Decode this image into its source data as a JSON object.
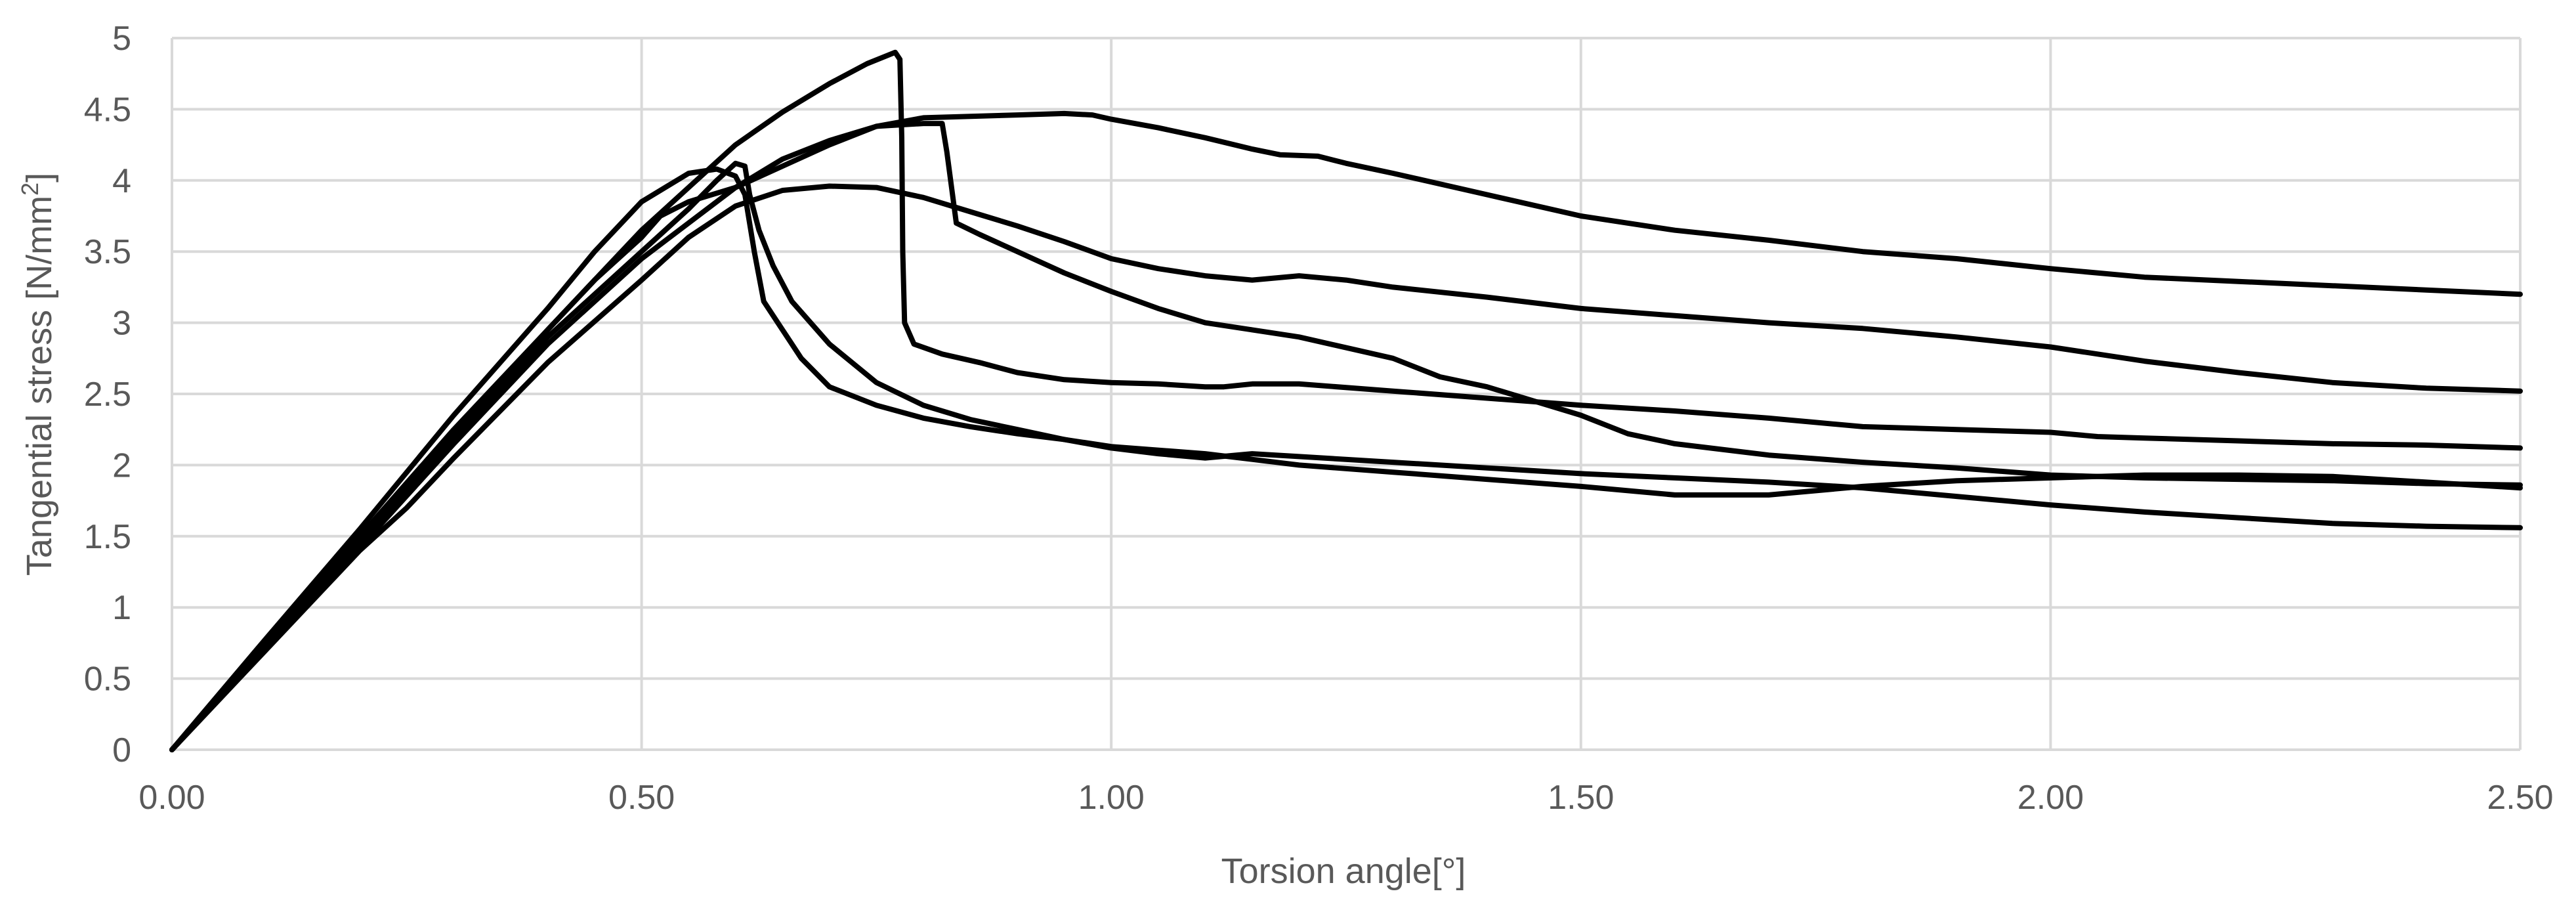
{
  "chart_data": {
    "type": "line",
    "title": "",
    "xlabel": "Torsion angle[°]",
    "ylabel_main": "Tangential stress [N/mm",
    "ylabel_sup": "2",
    "ylabel_close": "]",
    "xlim": [
      0,
      2.5
    ],
    "ylim": [
      0,
      5
    ],
    "x_ticks": [
      0,
      0.5,
      1.0,
      1.5,
      2.0,
      2.5
    ],
    "x_tick_labels": [
      "0.00",
      "0.50",
      "1.00",
      "1.50",
      "2.00",
      "2.50"
    ],
    "y_ticks": [
      0,
      0.5,
      1,
      1.5,
      2,
      2.5,
      3,
      3.5,
      4,
      4.5,
      5
    ],
    "y_tick_labels": [
      "0",
      "0.5",
      "1",
      "1.5",
      "2",
      "2.5",
      "3",
      "3.5",
      "4",
      "4.5",
      "5"
    ],
    "grid": true,
    "line_color": "#000000",
    "grid_color": "#d9d9d9",
    "series": [
      {
        "points": [
          [
            0,
            0
          ],
          [
            0.1,
            0.72
          ],
          [
            0.2,
            1.45
          ],
          [
            0.3,
            2.2
          ],
          [
            0.4,
            2.95
          ],
          [
            0.5,
            3.65
          ],
          [
            0.55,
            3.95
          ],
          [
            0.6,
            4.25
          ],
          [
            0.65,
            4.48
          ],
          [
            0.7,
            4.68
          ],
          [
            0.74,
            4.82
          ],
          [
            0.77,
            4.9
          ],
          [
            0.775,
            4.85
          ],
          [
            0.777,
            4.3
          ],
          [
            0.778,
            3.5
          ],
          [
            0.78,
            3.0
          ],
          [
            0.79,
            2.85
          ],
          [
            0.82,
            2.78
          ],
          [
            0.86,
            2.72
          ],
          [
            0.9,
            2.65
          ],
          [
            0.95,
            2.6
          ],
          [
            1.0,
            2.58
          ],
          [
            1.05,
            2.57
          ],
          [
            1.1,
            2.55
          ],
          [
            1.12,
            2.55
          ],
          [
            1.15,
            2.57
          ],
          [
            1.2,
            2.57
          ],
          [
            1.3,
            2.52
          ],
          [
            1.4,
            2.47
          ],
          [
            1.5,
            2.42
          ],
          [
            1.6,
            2.38
          ],
          [
            1.7,
            2.33
          ],
          [
            1.75,
            2.3
          ],
          [
            1.8,
            2.27
          ],
          [
            1.9,
            2.25
          ],
          [
            2.0,
            2.23
          ],
          [
            2.05,
            2.2
          ],
          [
            2.1,
            2.19
          ],
          [
            2.2,
            2.17
          ],
          [
            2.3,
            2.15
          ],
          [
            2.4,
            2.14
          ],
          [
            2.5,
            2.12
          ]
        ]
      },
      {
        "points": [
          [
            0,
            0
          ],
          [
            0.1,
            0.72
          ],
          [
            0.2,
            1.42
          ],
          [
            0.3,
            2.15
          ],
          [
            0.4,
            2.85
          ],
          [
            0.5,
            3.45
          ],
          [
            0.6,
            3.95
          ],
          [
            0.7,
            4.25
          ],
          [
            0.75,
            4.38
          ],
          [
            0.8,
            4.44
          ],
          [
            0.85,
            4.45
          ],
          [
            0.9,
            4.46
          ],
          [
            0.95,
            4.47
          ],
          [
            0.98,
            4.46
          ],
          [
            1.0,
            4.43
          ],
          [
            1.05,
            4.37
          ],
          [
            1.1,
            4.3
          ],
          [
            1.15,
            4.22
          ],
          [
            1.18,
            4.18
          ],
          [
            1.22,
            4.17
          ],
          [
            1.25,
            4.12
          ],
          [
            1.3,
            4.05
          ],
          [
            1.4,
            3.9
          ],
          [
            1.5,
            3.75
          ],
          [
            1.6,
            3.65
          ],
          [
            1.7,
            3.58
          ],
          [
            1.8,
            3.5
          ],
          [
            1.9,
            3.45
          ],
          [
            2.0,
            3.38
          ],
          [
            2.1,
            3.32
          ],
          [
            2.2,
            3.29
          ],
          [
            2.3,
            3.26
          ],
          [
            2.4,
            3.23
          ],
          [
            2.5,
            3.2
          ]
        ]
      },
      {
        "points": [
          [
            0,
            0
          ],
          [
            0.1,
            0.75
          ],
          [
            0.2,
            1.5
          ],
          [
            0.3,
            2.25
          ],
          [
            0.4,
            2.95
          ],
          [
            0.45,
            3.3
          ],
          [
            0.5,
            3.6
          ],
          [
            0.52,
            3.75
          ],
          [
            0.55,
            3.85
          ],
          [
            0.6,
            3.95
          ],
          [
            0.65,
            4.15
          ],
          [
            0.7,
            4.28
          ],
          [
            0.75,
            4.38
          ],
          [
            0.8,
            4.4
          ],
          [
            0.82,
            4.4
          ],
          [
            0.825,
            4.2
          ],
          [
            0.83,
            3.95
          ],
          [
            0.835,
            3.7
          ],
          [
            0.86,
            3.62
          ],
          [
            0.9,
            3.5
          ],
          [
            0.95,
            3.35
          ],
          [
            1.0,
            3.22
          ],
          [
            1.05,
            3.1
          ],
          [
            1.1,
            3.0
          ],
          [
            1.15,
            2.95
          ],
          [
            1.2,
            2.9
          ],
          [
            1.3,
            2.75
          ],
          [
            1.35,
            2.62
          ],
          [
            1.4,
            2.55
          ],
          [
            1.45,
            2.45
          ],
          [
            1.5,
            2.35
          ],
          [
            1.55,
            2.22
          ],
          [
            1.6,
            2.15
          ],
          [
            1.7,
            2.07
          ],
          [
            1.8,
            2.02
          ],
          [
            1.9,
            1.98
          ],
          [
            2.0,
            1.93
          ],
          [
            2.1,
            1.91
          ],
          [
            2.2,
            1.9
          ],
          [
            2.3,
            1.89
          ],
          [
            2.4,
            1.87
          ],
          [
            2.5,
            1.86
          ]
        ]
      },
      {
        "points": [
          [
            0,
            0
          ],
          [
            0.1,
            0.7
          ],
          [
            0.2,
            1.4
          ],
          [
            0.25,
            1.7
          ],
          [
            0.3,
            2.05
          ],
          [
            0.4,
            2.72
          ],
          [
            0.5,
            3.3
          ],
          [
            0.55,
            3.6
          ],
          [
            0.6,
            3.82
          ],
          [
            0.65,
            3.93
          ],
          [
            0.7,
            3.96
          ],
          [
            0.75,
            3.95
          ],
          [
            0.8,
            3.88
          ],
          [
            0.85,
            3.78
          ],
          [
            0.9,
            3.68
          ],
          [
            0.95,
            3.57
          ],
          [
            1.0,
            3.45
          ],
          [
            1.05,
            3.38
          ],
          [
            1.1,
            3.33
          ],
          [
            1.15,
            3.3
          ],
          [
            1.2,
            3.33
          ],
          [
            1.25,
            3.3
          ],
          [
            1.3,
            3.25
          ],
          [
            1.4,
            3.18
          ],
          [
            1.5,
            3.1
          ],
          [
            1.6,
            3.05
          ],
          [
            1.7,
            3.0
          ],
          [
            1.8,
            2.96
          ],
          [
            1.9,
            2.9
          ],
          [
            2.0,
            2.83
          ],
          [
            2.1,
            2.73
          ],
          [
            2.2,
            2.65
          ],
          [
            2.3,
            2.58
          ],
          [
            2.4,
            2.54
          ],
          [
            2.5,
            2.52
          ]
        ]
      },
      {
        "points": [
          [
            0,
            0
          ],
          [
            0.1,
            0.78
          ],
          [
            0.2,
            1.55
          ],
          [
            0.3,
            2.35
          ],
          [
            0.4,
            3.1
          ],
          [
            0.45,
            3.5
          ],
          [
            0.5,
            3.85
          ],
          [
            0.55,
            4.05
          ],
          [
            0.58,
            4.08
          ],
          [
            0.6,
            4.03
          ],
          [
            0.61,
            3.9
          ],
          [
            0.62,
            3.5
          ],
          [
            0.63,
            3.15
          ],
          [
            0.65,
            2.95
          ],
          [
            0.67,
            2.75
          ],
          [
            0.7,
            2.55
          ],
          [
            0.75,
            2.42
          ],
          [
            0.8,
            2.33
          ],
          [
            0.85,
            2.27
          ],
          [
            0.9,
            2.22
          ],
          [
            0.95,
            2.18
          ],
          [
            1.0,
            2.13
          ],
          [
            1.1,
            2.08
          ],
          [
            1.2,
            2.0
          ],
          [
            1.3,
            1.95
          ],
          [
            1.4,
            1.9
          ],
          [
            1.5,
            1.85
          ],
          [
            1.6,
            1.79
          ],
          [
            1.7,
            1.79
          ],
          [
            1.8,
            1.85
          ],
          [
            1.9,
            1.89
          ],
          [
            2.0,
            1.91
          ],
          [
            2.1,
            1.93
          ],
          [
            2.2,
            1.93
          ],
          [
            2.3,
            1.92
          ],
          [
            2.4,
            1.88
          ],
          [
            2.5,
            1.84
          ]
        ]
      },
      {
        "points": [
          [
            0,
            0
          ],
          [
            0.1,
            0.73
          ],
          [
            0.2,
            1.48
          ],
          [
            0.3,
            2.2
          ],
          [
            0.4,
            2.9
          ],
          [
            0.5,
            3.5
          ],
          [
            0.55,
            3.8
          ],
          [
            0.58,
            4.0
          ],
          [
            0.6,
            4.12
          ],
          [
            0.61,
            4.1
          ],
          [
            0.615,
            3.9
          ],
          [
            0.625,
            3.65
          ],
          [
            0.64,
            3.4
          ],
          [
            0.66,
            3.15
          ],
          [
            0.7,
            2.85
          ],
          [
            0.75,
            2.58
          ],
          [
            0.8,
            2.42
          ],
          [
            0.85,
            2.32
          ],
          [
            0.9,
            2.25
          ],
          [
            0.95,
            2.18
          ],
          [
            1.0,
            2.12
          ],
          [
            1.05,
            2.08
          ],
          [
            1.1,
            2.05
          ],
          [
            1.15,
            2.08
          ],
          [
            1.2,
            2.06
          ],
          [
            1.3,
            2.02
          ],
          [
            1.4,
            1.98
          ],
          [
            1.5,
            1.94
          ],
          [
            1.6,
            1.91
          ],
          [
            1.7,
            1.88
          ],
          [
            1.8,
            1.84
          ],
          [
            1.9,
            1.78
          ],
          [
            2.0,
            1.72
          ],
          [
            2.1,
            1.67
          ],
          [
            2.2,
            1.63
          ],
          [
            2.3,
            1.59
          ],
          [
            2.4,
            1.57
          ],
          [
            2.5,
            1.56
          ]
        ]
      }
    ]
  }
}
